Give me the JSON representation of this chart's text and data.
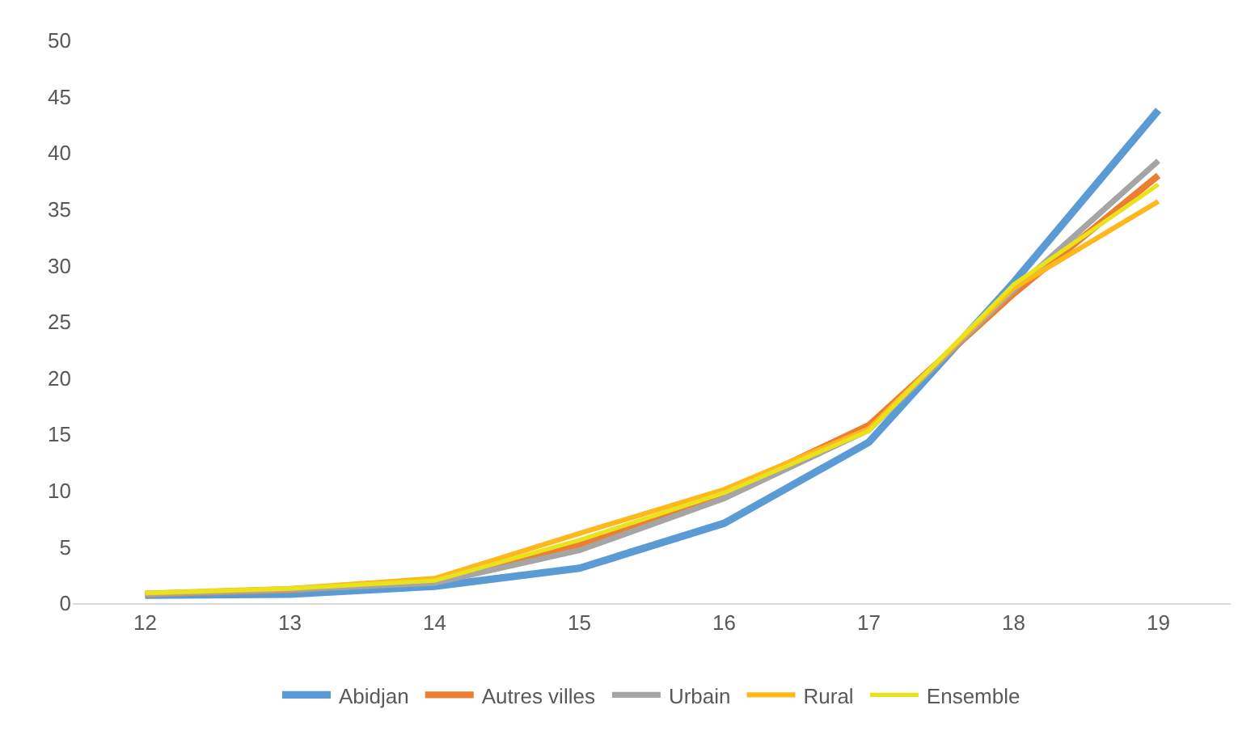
{
  "chart_data": {
    "type": "line",
    "categories": [
      "12",
      "13",
      "14",
      "15",
      "16",
      "17",
      "18",
      "19"
    ],
    "series": [
      {
        "name": "Abidjan",
        "color": "#5b9bd5",
        "values": [
          0.7,
          0.8,
          1.5,
          3.1,
          7.1,
          14.3,
          28.5,
          43.8
        ]
      },
      {
        "name": "Autres villes",
        "color": "#ed7d31",
        "values": [
          0.8,
          1.2,
          2.0,
          5.2,
          9.7,
          15.8,
          27.5,
          38.0
        ]
      },
      {
        "name": "Urbain",
        "color": "#a5a5a5",
        "values": [
          0.8,
          1.2,
          1.8,
          4.7,
          9.3,
          15.4,
          27.8,
          39.3
        ]
      },
      {
        "name": "Rural",
        "color": "#ffb81c",
        "values": [
          0.9,
          1.3,
          2.2,
          6.2,
          10.1,
          15.5,
          28.0,
          35.7
        ]
      },
      {
        "name": "Ensemble",
        "color": "#e8e31a",
        "values": [
          0.9,
          1.3,
          2.0,
          5.6,
          9.8,
          15.3,
          28.3,
          37.2
        ]
      }
    ],
    "ylim": [
      0,
      50
    ],
    "yticks": [
      0,
      5,
      10,
      15,
      20,
      25,
      30,
      35,
      40,
      45,
      50
    ],
    "grid": false,
    "legend": "bottom",
    "marker": "none",
    "line_style": "solid"
  }
}
